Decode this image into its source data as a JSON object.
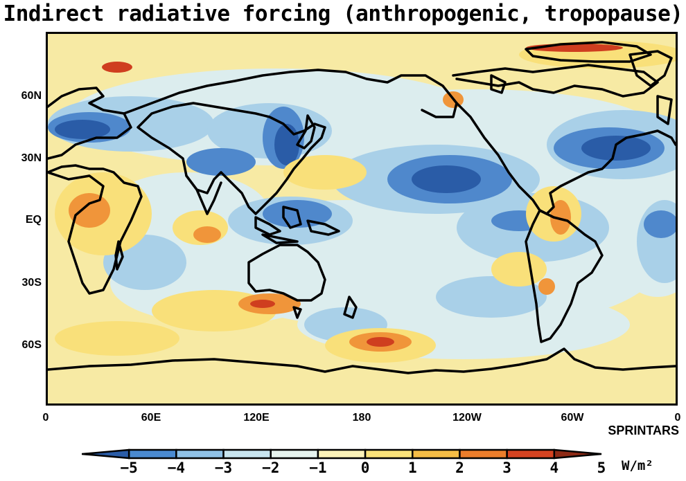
{
  "title": "Indirect radiative forcing (anthropogenic, tropopause)",
  "model": "SPRINTARS",
  "units": "W/m²",
  "lat_labels": [
    "60N",
    "30N",
    "EQ",
    "30S",
    "60S"
  ],
  "lon_labels": [
    "0",
    "60E",
    "120E",
    "180",
    "120W",
    "60W",
    "0"
  ],
  "colorbar": {
    "labels": [
      "−5",
      "−4",
      "−3",
      "−2",
      "−1",
      "0",
      "1",
      "2",
      "3",
      "4",
      "5"
    ],
    "colors": [
      "#2a5ca7",
      "#4a8ad0",
      "#8fc1e6",
      "#c7e4ef",
      "#e6f3ee",
      "#fbf2b8",
      "#f9e27a",
      "#f5bd45",
      "#eb7d2b",
      "#d54321",
      "#8e2a15"
    ]
  },
  "palette": {
    "deep_blue": "#2a5ca7",
    "mid_blue": "#5f97d4",
    "light_blue": "#a8d0ea",
    "pale_blue": "#ddeff0",
    "pale_yellow": "#fbf2b8",
    "yellow": "#f9e27a",
    "orange": "#f5bd45",
    "dark_orange": "#eb7d2b",
    "red": "#d54321",
    "dark_red": "#8e2a15"
  }
}
